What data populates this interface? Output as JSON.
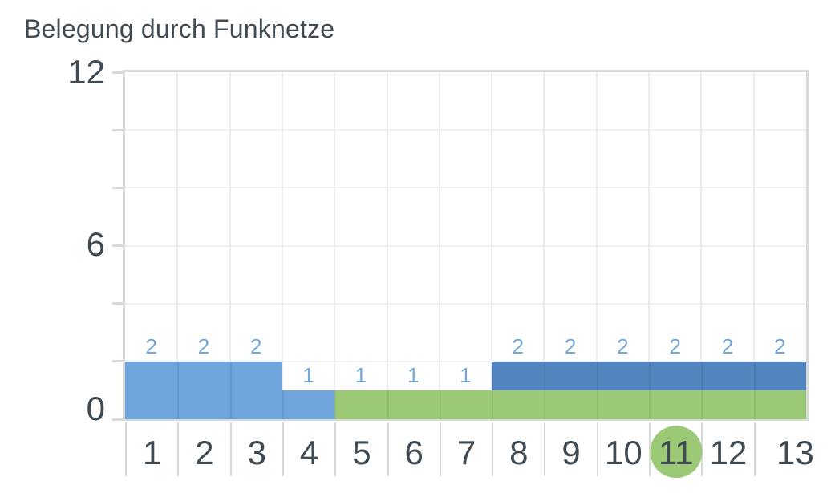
{
  "chart_data": {
    "type": "bar",
    "stacked": true,
    "title": "Belegung durch Funknetze",
    "categories": [
      "1",
      "2",
      "3",
      "4",
      "5",
      "6",
      "7",
      "8",
      "9",
      "10",
      "11",
      "12",
      "13"
    ],
    "series": [
      {
        "name": "green",
        "color": "#9bc975",
        "values": [
          0,
          0,
          0,
          0,
          1,
          1,
          1,
          1,
          1,
          1,
          1,
          1,
          1
        ]
      },
      {
        "name": "light-blue",
        "color": "#6da5dc",
        "values": [
          2,
          2,
          2,
          1,
          0,
          0,
          0,
          0,
          0,
          0,
          0,
          0,
          0
        ]
      },
      {
        "name": "dark-blue",
        "color": "#5284bf",
        "values": [
          0,
          0,
          0,
          0,
          0,
          0,
          0,
          1,
          1,
          1,
          1,
          1,
          1
        ]
      }
    ],
    "value_labels": [
      "2",
      "2",
      "2",
      "1",
      "1",
      "1",
      "1",
      "2",
      "2",
      "2",
      "2",
      "2",
      "2"
    ],
    "ylim": [
      0,
      12
    ],
    "ytick_step": 2,
    "yticks_labeled": [
      {
        "value": 12,
        "label": "12"
      },
      {
        "value": 6,
        "label": "6"
      },
      {
        "value": 0,
        "label": "0"
      }
    ],
    "xlabel": "",
    "ylabel": "",
    "grid": true,
    "legend": "none",
    "highlighted_category": "11"
  },
  "colors": {
    "title_text": "#404a53",
    "axis_text": "#404a53",
    "value_label_text": "#72a7dc",
    "plot_border": "#d9d9d9",
    "grid_vertical": "#ececec",
    "grid_horizontal": "#f2f2f2",
    "tick": "#d9d9d9",
    "highlight_circle": "#9bc975",
    "background": "#ffffff"
  }
}
